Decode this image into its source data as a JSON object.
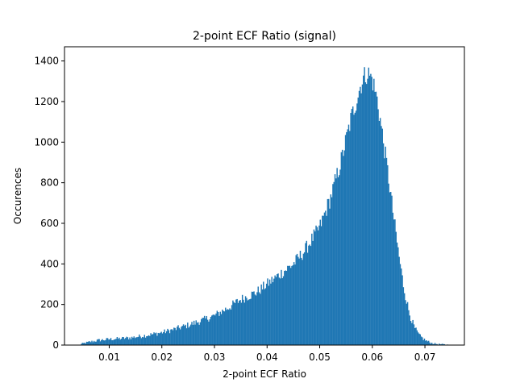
{
  "chart_data": {
    "type": "bar",
    "title": "2-point ECF Ratio (signal)",
    "xlabel": "2-point ECF Ratio",
    "ylabel": "Occurences",
    "xlim": [
      0.0015,
      0.0775
    ],
    "ylim": [
      0,
      1470
    ],
    "xticks": [
      0.01,
      0.02,
      0.03,
      0.04,
      0.05,
      0.06,
      0.07
    ],
    "xtick_labels": [
      "0.01",
      "0.02",
      "0.03",
      "0.04",
      "0.05",
      "0.06",
      "0.07"
    ],
    "yticks": [
      0,
      200,
      400,
      600,
      800,
      1000,
      1200,
      1400
    ],
    "ytick_labels": [
      "0",
      "200",
      "400",
      "600",
      "800",
      "1000",
      "1200",
      "1400"
    ],
    "grid": false,
    "bar_color": "#1f77b4",
    "bin_width": 0.0002,
    "bin_anchors": [
      [
        0.0042,
        0
      ],
      [
        0.0044,
        2
      ],
      [
        0.005,
        8
      ],
      [
        0.006,
        14
      ],
      [
        0.007,
        19
      ],
      [
        0.008,
        24
      ],
      [
        0.009,
        26
      ],
      [
        0.01,
        29
      ],
      [
        0.012,
        32
      ],
      [
        0.014,
        36
      ],
      [
        0.016,
        44
      ],
      [
        0.018,
        52
      ],
      [
        0.02,
        62
      ],
      [
        0.022,
        75
      ],
      [
        0.025,
        98
      ],
      [
        0.028,
        125
      ],
      [
        0.03,
        145
      ],
      [
        0.033,
        190
      ],
      [
        0.035,
        225
      ],
      [
        0.038,
        260
      ],
      [
        0.04,
        300
      ],
      [
        0.042,
        340
      ],
      [
        0.045,
        400
      ],
      [
        0.047,
        460
      ],
      [
        0.05,
        580
      ],
      [
        0.052,
        720
      ],
      [
        0.054,
        900
      ],
      [
        0.056,
        1120
      ],
      [
        0.058,
        1300
      ],
      [
        0.059,
        1345
      ],
      [
        0.06,
        1310
      ],
      [
        0.061,
        1200
      ],
      [
        0.062,
        1020
      ],
      [
        0.063,
        840
      ],
      [
        0.064,
        640
      ],
      [
        0.065,
        450
      ],
      [
        0.066,
        280
      ],
      [
        0.067,
        160
      ],
      [
        0.068,
        85
      ],
      [
        0.069,
        45
      ],
      [
        0.07,
        25
      ],
      [
        0.071,
        12
      ],
      [
        0.072,
        6
      ],
      [
        0.074,
        2
      ],
      [
        0.075,
        0
      ]
    ]
  }
}
